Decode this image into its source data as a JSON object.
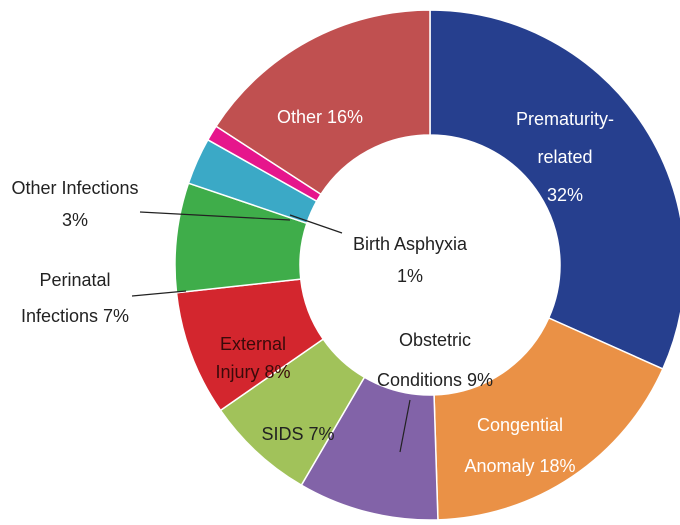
{
  "chart_data": {
    "type": "pie",
    "categories": [
      "Prematurity-related",
      "Congential Anomaly",
      "Obstetric Conditions",
      "SIDS",
      "External Injury",
      "Perinatal Infections",
      "Other Infections",
      "Birth Asphyxia",
      "Other"
    ],
    "values": [
      32,
      18,
      9,
      7,
      8,
      7,
      3,
      1,
      16
    ],
    "value_labels": [
      "32%",
      "18%",
      "9%",
      "7%",
      "8%",
      "7%",
      "3%",
      "1%",
      "16%"
    ],
    "colors": [
      "#263f8e",
      "#ea9146",
      "#8263a8",
      "#a1c25a",
      "#d3262e",
      "#3fad4a",
      "#3ba9c6",
      "#e6168c",
      "#c05050"
    ]
  }
}
